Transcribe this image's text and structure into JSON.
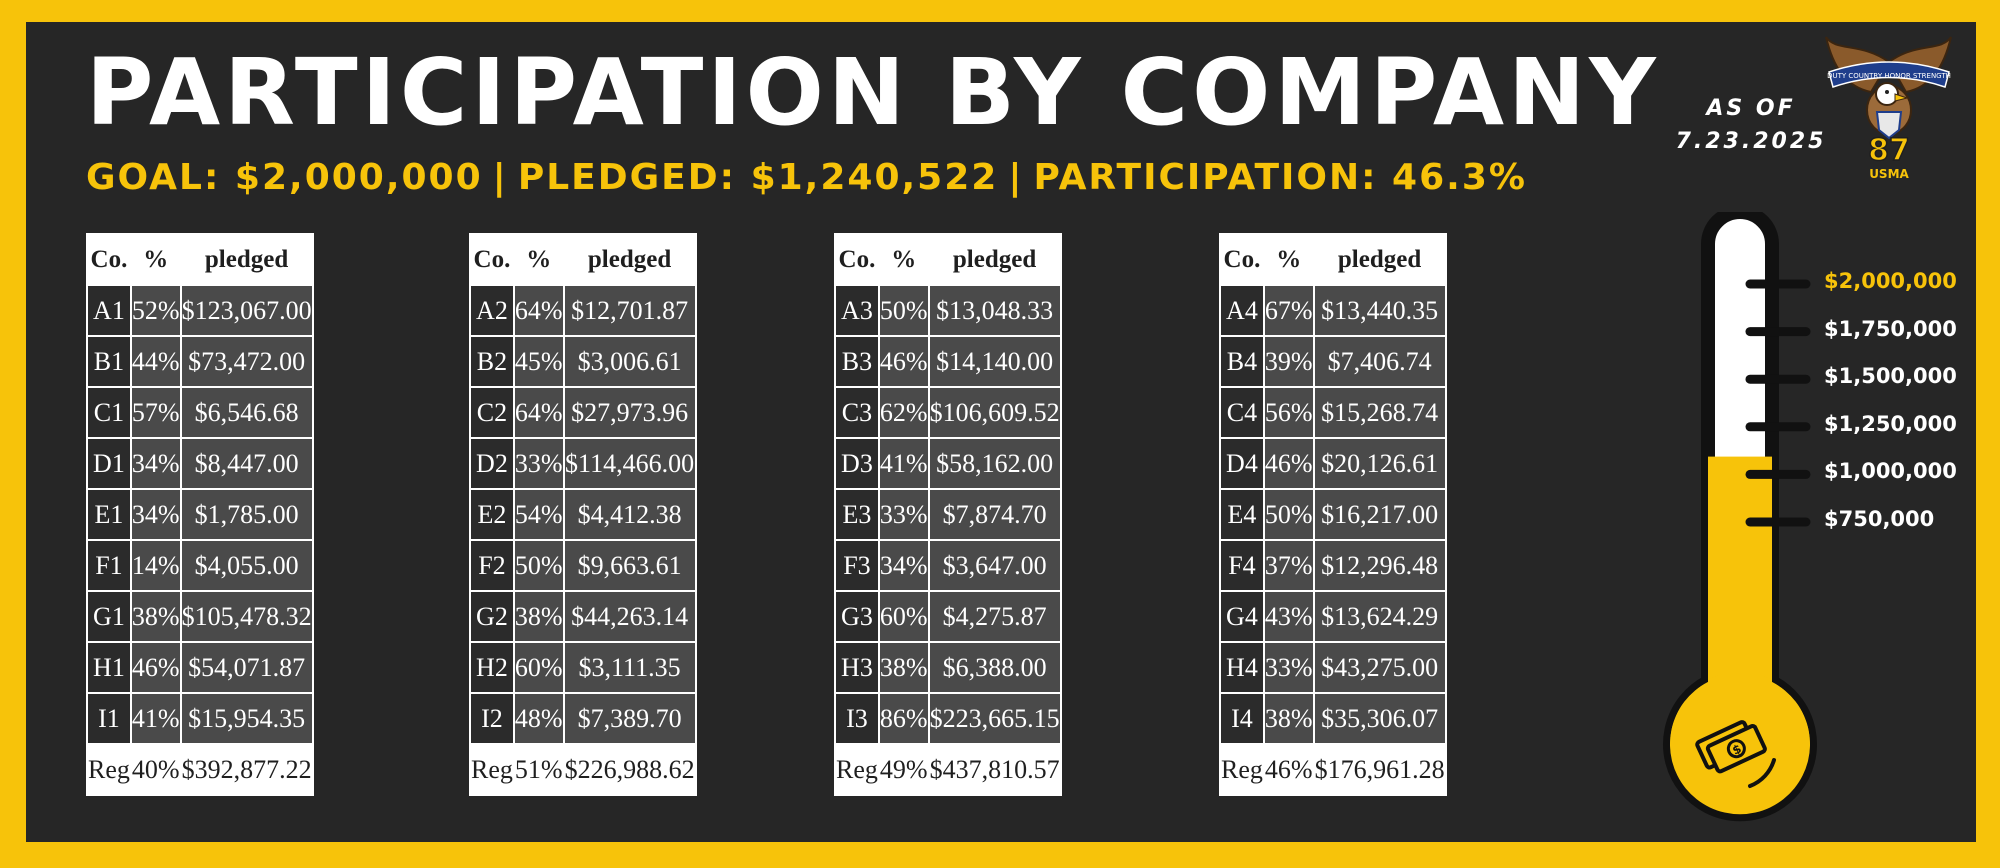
{
  "header": {
    "title": "PARTICIPATION BY COMPANY",
    "goal_text": "GOAL: $2,000,000",
    "pledged_text": "PLEDGED: $1,240,522",
    "participation_text": "PARTICIPATION: 46.3%",
    "separator": "|",
    "as_of_label": "AS OF",
    "as_of_date": "7.23.2025"
  },
  "crest": {
    "banner_text": "DUTY COUNTRY HONOR STRENGTH",
    "number": "87",
    "org": "USMA"
  },
  "colors": {
    "accent": "#f7c30a",
    "panel": "#262626",
    "cell_dark": "#2b2b2b",
    "cell_mid": "#4a4a4a"
  },
  "icons": {
    "thermometer_bulb": "money-stack-icon"
  },
  "chart_data": {
    "type": "table",
    "columns": [
      "Co.",
      "%",
      "pledged"
    ],
    "blocks": [
      {
        "rows": [
          [
            "A1",
            "52%",
            "$123,067.00"
          ],
          [
            "B1",
            "44%",
            "$73,472.00"
          ],
          [
            "C1",
            "57%",
            "$6,546.68"
          ],
          [
            "D1",
            "34%",
            "$8,447.00"
          ],
          [
            "E1",
            "34%",
            "$1,785.00"
          ],
          [
            "F1",
            "14%",
            "$4,055.00"
          ],
          [
            "G1",
            "38%",
            "$105,478.32"
          ],
          [
            "H1",
            "46%",
            "$54,071.87"
          ],
          [
            "I1",
            "41%",
            "$15,954.35"
          ]
        ],
        "total": [
          "Reg",
          "40%",
          "$392,877.22"
        ]
      },
      {
        "rows": [
          [
            "A2",
            "64%",
            "$12,701.87"
          ],
          [
            "B2",
            "45%",
            "$3,006.61"
          ],
          [
            "C2",
            "64%",
            "$27,973.96"
          ],
          [
            "D2",
            "33%",
            "$114,466.00"
          ],
          [
            "E2",
            "54%",
            "$4,412.38"
          ],
          [
            "F2",
            "50%",
            "$9,663.61"
          ],
          [
            "G2",
            "38%",
            "$44,263.14"
          ],
          [
            "H2",
            "60%",
            "$3,111.35"
          ],
          [
            "I2",
            "48%",
            "$7,389.70"
          ]
        ],
        "total": [
          "Reg",
          "51%",
          "$226,988.62"
        ]
      },
      {
        "rows": [
          [
            "A3",
            "50%",
            "$13,048.33"
          ],
          [
            "B3",
            "46%",
            "$14,140.00"
          ],
          [
            "C3",
            "62%",
            "$106,609.52"
          ],
          [
            "D3",
            "41%",
            "$58,162.00"
          ],
          [
            "E3",
            "33%",
            "$7,874.70"
          ],
          [
            "F3",
            "34%",
            "$3,647.00"
          ],
          [
            "G3",
            "60%",
            "$4,275.87"
          ],
          [
            "H3",
            "38%",
            "$6,388.00"
          ],
          [
            "I3",
            "86%",
            "$223,665.15"
          ]
        ],
        "total": [
          "Reg",
          "49%",
          "$437,810.57"
        ]
      },
      {
        "rows": [
          [
            "A4",
            "67%",
            "$13,440.35"
          ],
          [
            "B4",
            "39%",
            "$7,406.74"
          ],
          [
            "C4",
            "56%",
            "$15,268.74"
          ],
          [
            "D4",
            "46%",
            "$20,126.61"
          ],
          [
            "E4",
            "50%",
            "$16,217.00"
          ],
          [
            "F4",
            "37%",
            "$12,296.48"
          ],
          [
            "G4",
            "43%",
            "$13,624.29"
          ],
          [
            "H4",
            "33%",
            "$43,275.00"
          ],
          [
            "I4",
            "38%",
            "$35,306.07"
          ]
        ],
        "total": [
          "Reg",
          "46%",
          "$176,961.28"
        ]
      }
    ],
    "thermometer": {
      "type": "gauge",
      "goal": 2000000,
      "pledged": 1240522,
      "ticks": [
        {
          "value": 2000000,
          "label": "$2,000,000",
          "highlight": true
        },
        {
          "value": 1750000,
          "label": "$1,750,000"
        },
        {
          "value": 1500000,
          "label": "$1,500,000"
        },
        {
          "value": 1250000,
          "label": "$1,250,000"
        },
        {
          "value": 1000000,
          "label": "$1,000,000"
        },
        {
          "value": 750000,
          "label": "$750,000"
        }
      ]
    }
  }
}
